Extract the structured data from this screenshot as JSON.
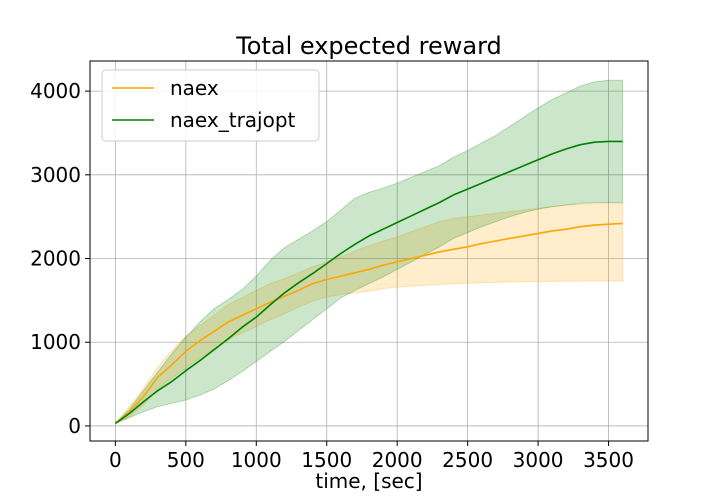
{
  "chart_data": {
    "type": "line",
    "title": "Total expected reward",
    "xlabel": "time, [sec]",
    "ylabel": "",
    "xlim": [
      -180,
      3780
    ],
    "ylim": [
      -180,
      4360
    ],
    "xticks": [
      0,
      500,
      1000,
      1500,
      2000,
      2500,
      3000,
      3500
    ],
    "yticks": [
      0,
      1000,
      2000,
      3000,
      4000
    ],
    "grid": true,
    "legend_position": "top-left",
    "x": [
      0,
      100,
      200,
      300,
      400,
      500,
      600,
      700,
      800,
      900,
      1000,
      1100,
      1200,
      1300,
      1400,
      1500,
      1600,
      1700,
      1800,
      1900,
      2000,
      2100,
      2200,
      2300,
      2400,
      2500,
      2600,
      2700,
      2800,
      2900,
      3000,
      3100,
      3200,
      3300,
      3400,
      3500,
      3600
    ],
    "series": [
      {
        "name": "naex",
        "color": "#ffa500",
        "band_color": "#ffe2b0",
        "mean": [
          30,
          170,
          350,
          580,
          730,
          890,
          1020,
          1130,
          1240,
          1320,
          1400,
          1480,
          1550,
          1620,
          1700,
          1750,
          1790,
          1830,
          1870,
          1920,
          1960,
          2000,
          2040,
          2080,
          2110,
          2140,
          2180,
          2210,
          2240,
          2270,
          2300,
          2330,
          2350,
          2380,
          2400,
          2410,
          2420
        ],
        "upper": [
          30,
          230,
          450,
          700,
          900,
          1070,
          1200,
          1320,
          1450,
          1530,
          1620,
          1700,
          1760,
          1830,
          1900,
          1960,
          2020,
          2090,
          2150,
          2210,
          2260,
          2320,
          2380,
          2440,
          2480,
          2500,
          2520,
          2540,
          2560,
          2580,
          2600,
          2620,
          2640,
          2650,
          2660,
          2660,
          2660
        ],
        "lower": [
          30,
          110,
          250,
          440,
          570,
          690,
          810,
          920,
          1030,
          1110,
          1190,
          1270,
          1340,
          1420,
          1490,
          1540,
          1570,
          1590,
          1610,
          1640,
          1660,
          1670,
          1680,
          1690,
          1700,
          1705,
          1710,
          1715,
          1720,
          1722,
          1725,
          1727,
          1728,
          1729,
          1730,
          1730,
          1730
        ]
      },
      {
        "name": "naex_trajopt",
        "color": "#008000",
        "band_color": "#b8dcb8",
        "mean": [
          30,
          150,
          290,
          420,
          530,
          660,
          780,
          910,
          1040,
          1180,
          1300,
          1450,
          1590,
          1710,
          1820,
          1940,
          2060,
          2170,
          2270,
          2350,
          2430,
          2510,
          2590,
          2670,
          2760,
          2830,
          2900,
          2970,
          3040,
          3110,
          3180,
          3250,
          3310,
          3360,
          3390,
          3400,
          3400
        ],
        "upper": [
          30,
          200,
          420,
          640,
          860,
          1060,
          1240,
          1400,
          1510,
          1630,
          1790,
          1980,
          2130,
          2230,
          2330,
          2440,
          2580,
          2720,
          2790,
          2840,
          2900,
          2970,
          3040,
          3110,
          3210,
          3290,
          3380,
          3470,
          3580,
          3690,
          3800,
          3900,
          3980,
          4060,
          4110,
          4130,
          4130
        ],
        "lower": [
          30,
          100,
          170,
          230,
          270,
          310,
          370,
          440,
          540,
          650,
          770,
          890,
          1010,
          1140,
          1270,
          1400,
          1530,
          1620,
          1700,
          1780,
          1870,
          1960,
          2050,
          2140,
          2240,
          2310,
          2380,
          2440,
          2500,
          2550,
          2590,
          2620,
          2640,
          2660,
          2670,
          2670,
          2670
        ]
      }
    ]
  }
}
